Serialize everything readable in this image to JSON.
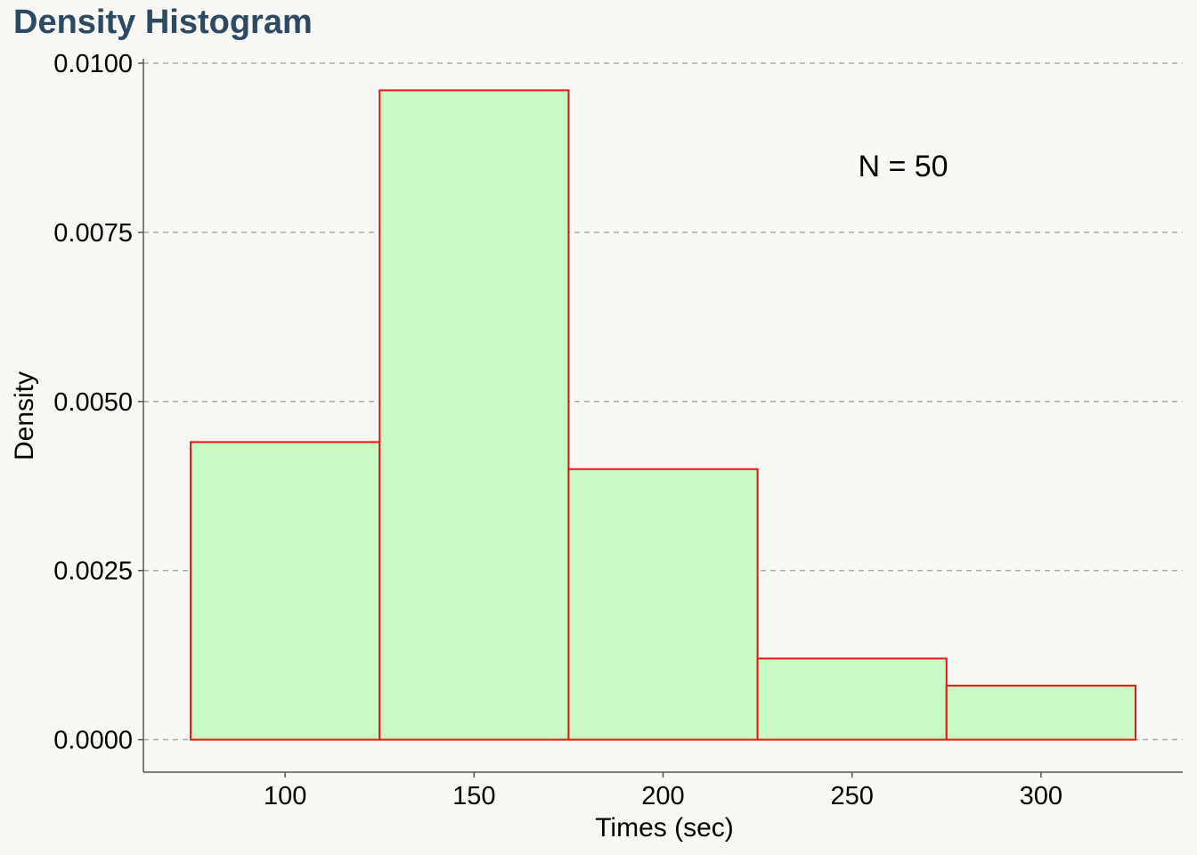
{
  "chart_data": {
    "type": "bar",
    "title": "Density Histogram",
    "xlabel": "Times (sec)",
    "ylabel": "Density",
    "annotation": "N = 50",
    "bins": [
      {
        "start": 75,
        "end": 125,
        "value": 0.0044
      },
      {
        "start": 125,
        "end": 175,
        "value": 0.0096
      },
      {
        "start": 175,
        "end": 225,
        "value": 0.004
      },
      {
        "start": 225,
        "end": 275,
        "value": 0.0012
      },
      {
        "start": 275,
        "end": 325,
        "value": 0.0008
      }
    ],
    "xticks": [
      100,
      150,
      200,
      250,
      300
    ],
    "xtick_labels": [
      "100",
      "150",
      "200",
      "250",
      "300"
    ],
    "yticks": [
      0.0,
      0.0025,
      0.005,
      0.0075,
      0.01
    ],
    "ytick_labels": [
      "0.0000",
      "0.0025",
      "0.0050",
      "0.0075",
      "0.0100"
    ],
    "xlim": [
      62.5,
      337.5
    ],
    "ylim": [
      -0.00048,
      0.01
    ],
    "grid": true,
    "colors": {
      "bar_fill": "#c8fac3",
      "bar_edge": "#e8141a",
      "grid": "#aaaaaa",
      "axis": "#555555",
      "title": "#2c4a63",
      "background": "#f9f8f4"
    }
  }
}
